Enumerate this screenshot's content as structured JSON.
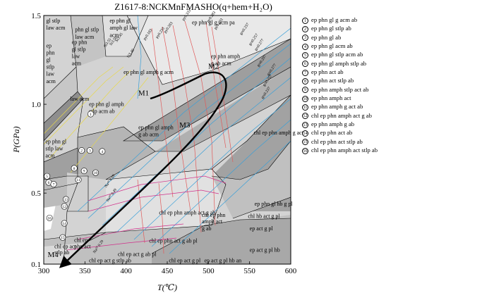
{
  "title": "Z1617-8:NCKMnFMASHO(q+hem+H₂O)",
  "chart_data": {
    "type": "diagram",
    "xlabel": "T(℃)",
    "ylabel": "P(GPa)",
    "xlim": [
      300,
      600
    ],
    "ylim": [
      0.1,
      1.5
    ],
    "x_ticks": [
      "300",
      "350",
      "400",
      "450",
      "500",
      "550",
      "600"
    ],
    "y_ticks": [
      "0.1",
      "0.5",
      "1.0",
      "1.5"
    ],
    "points": [
      {
        "label": "M1",
        "t": 425,
        "p": 1.05
      },
      {
        "label": "M2",
        "t": 510,
        "p": 1.2
      },
      {
        "label": "M3",
        "t": 475,
        "p": 0.87
      },
      {
        "label": "M4",
        "t": 315,
        "p": 0.14
      }
    ],
    "field_labels": [
      {
        "text": "gl stlp",
        "t": 303,
        "p": 1.46
      },
      {
        "text": "law acm",
        "t": 303,
        "p": 1.42
      },
      {
        "text": "phn gl stlp",
        "t": 338,
        "p": 1.41
      },
      {
        "text": "law acm",
        "t": 338,
        "p": 1.37
      },
      {
        "text": "ep phn gl",
        "t": 380,
        "p": 1.46
      },
      {
        "text": "amph gl law",
        "t": 380,
        "p": 1.42
      },
      {
        "text": "acm",
        "t": 380,
        "p": 1.38
      },
      {
        "text": "ep phn gl g acm pa",
        "t": 480,
        "p": 1.45
      },
      {
        "text": "ep phn",
        "t": 334,
        "p": 1.34
      },
      {
        "text": "gl stlp",
        "t": 334,
        "p": 1.3
      },
      {
        "text": "law",
        "t": 334,
        "p": 1.26
      },
      {
        "text": "acm",
        "t": 334,
        "p": 1.22
      },
      {
        "text": "ep",
        "t": 303,
        "p": 1.32
      },
      {
        "text": "phn",
        "t": 303,
        "p": 1.28
      },
      {
        "text": "gl",
        "t": 303,
        "p": 1.24
      },
      {
        "text": "stlp",
        "t": 303,
        "p": 1.2
      },
      {
        "text": "law",
        "t": 303,
        "p": 1.16
      },
      {
        "text": "acm",
        "t": 303,
        "p": 1.12
      },
      {
        "text": "ep phn gl amph g acm",
        "t": 397,
        "p": 1.17
      },
      {
        "text": "ep phn amph",
        "t": 503,
        "p": 1.26
      },
      {
        "text": "g ab acm",
        "t": 503,
        "p": 1.22
      },
      {
        "text": "ep phn gl amph",
        "t": 355,
        "p": 0.99
      },
      {
        "text": "stlp acm ab",
        "t": 355,
        "p": 0.95
      },
      {
        "text": "ep phn gl amph",
        "t": 415,
        "p": 0.86
      },
      {
        "text": "g ab acm",
        "t": 415,
        "p": 0.82
      },
      {
        "text": "chl ep phn amph g act",
        "t": 555,
        "p": 0.83
      },
      {
        "text": "ep phn gl",
        "t": 302,
        "p": 0.78
      },
      {
        "text": "stlp law",
        "t": 302,
        "p": 0.74
      },
      {
        "text": "acm",
        "t": 302,
        "p": 0.7
      },
      {
        "text": "chl ep phn amph act g ab",
        "t": 440,
        "p": 0.38
      },
      {
        "text": "chl ep phn",
        "t": 492,
        "p": 0.365
      },
      {
        "text": "amph act",
        "t": 492,
        "p": 0.33
      },
      {
        "text": "g ab",
        "t": 492,
        "p": 0.29
      },
      {
        "text": "chl ep phn act g ab pl",
        "t": 428,
        "p": 0.22
      },
      {
        "text": "chl ep act g ab pl",
        "t": 390,
        "p": 0.145
      },
      {
        "text": "chl ep",
        "t": 337,
        "p": 0.225
      },
      {
        "text": "phn act",
        "t": 337,
        "p": 0.19
      },
      {
        "text": "chl ep act",
        "t": 313,
        "p": 0.19
      },
      {
        "text": "stlp ab",
        "t": 313,
        "p": 0.155
      },
      {
        "text": "chl ep act g stlp ab",
        "t": 355,
        "p": 0.11
      },
      {
        "text": "ep act g pl",
        "t": 550,
        "p": 0.29
      },
      {
        "text": "ep act g pl hb",
        "t": 550,
        "p": 0.17
      },
      {
        "text": "chl ep act g pl",
        "t": 452,
        "p": 0.11
      },
      {
        "text": "ep act g pl hb an",
        "t": 495,
        "p": 0.11
      },
      {
        "text": "ep phn gl hb g pl",
        "t": 556,
        "p": 0.43
      },
      {
        "text": "chl hb act g pl",
        "t": 548,
        "p": 0.36
      },
      {
        "text": "law acm",
        "t": 332,
        "p": 1.02
      }
    ],
    "isopleth_labels": [
      {
        "text": "Si3.55",
        "t": 375,
        "p": 1.32
      },
      {
        "text": "Si3.50",
        "t": 382,
        "p": 1.33
      },
      {
        "text": "Si3.45",
        "t": 389,
        "p": 1.35
      },
      {
        "text": "Si3.40",
        "t": 403,
        "p": 1.26
      },
      {
        "text": "py0.183",
        "t": 423,
        "p": 1.36
      },
      {
        "text": "py0.233",
        "t": 438,
        "p": 1.37
      },
      {
        "text": "py0.283",
        "t": 448,
        "p": 1.4
      },
      {
        "text": "py0.333",
        "t": 470,
        "p": 1.47
      },
      {
        "text": "py0.283",
        "t": 500,
        "p": 1.46
      },
      {
        "text": "py0.233",
        "t": 509,
        "p": 1.42
      },
      {
        "text": "grs0.237",
        "t": 540,
        "p": 1.39
      },
      {
        "text": "grs0.257",
        "t": 551,
        "p": 1.33
      },
      {
        "text": "grs0.277",
        "t": 558,
        "p": 1.3
      },
      {
        "text": "grs0.297",
        "t": 561,
        "p": 1.21
      },
      {
        "text": "grs0.277",
        "t": 573,
        "p": 1.16
      },
      {
        "text": "grs0.257",
        "t": 568,
        "p": 1.1
      },
      {
        "text": "grs0.237",
        "t": 566,
        "p": 1.03
      },
      {
        "text": "Na⁵⁰ 0.69",
        "t": 376,
        "p": 0.53
      },
      {
        "text": "Na⁵⁰ 0.49",
        "t": 378,
        "p": 0.45
      },
      {
        "text": "Na⁵⁰ 0.29",
        "t": 362,
        "p": 0.16
      }
    ],
    "legend": [
      "ep phn gl g acm ab",
      "ep phn gl stlp ab",
      "ep phn gl ab",
      "ep phn gl acm ab",
      "ep phn gl stlp acm ab",
      "ep phn gl amph stlp ab",
      "ep phn act ab",
      "ep phn act stlp ab",
      "ep phn amph stlp act ab",
      "ep phn amph act",
      "ep phn amph g act ab",
      "chl ep phn amph  act g ab",
      "ep phn amph g ab",
      "chl ep phn act ab",
      "chl ep phn  act stlp ab",
      "chl ep phn amph act stlp ab"
    ],
    "circle_numbers": [
      {
        "n": "1",
        "t": 357,
        "p": 0.945
      },
      {
        "n": "2",
        "t": 346,
        "p": 0.74
      },
      {
        "n": "3",
        "t": 356,
        "p": 0.74
      },
      {
        "n": "4",
        "t": 371,
        "p": 0.735
      },
      {
        "n": "5",
        "t": 304,
        "p": 0.595
      },
      {
        "n": "6",
        "t": 306,
        "p": 0.56
      },
      {
        "n": "7",
        "t": 312,
        "p": 0.55
      },
      {
        "n": "8",
        "t": 337,
        "p": 0.64
      },
      {
        "n": "9",
        "t": 349,
        "p": 0.625
      },
      {
        "n": "10",
        "t": 363,
        "p": 0.615
      },
      {
        "n": "11",
        "t": 342,
        "p": 0.575
      },
      {
        "n": "12",
        "t": 325,
        "p": 0.425
      },
      {
        "n": "13",
        "t": 327,
        "p": 0.465
      },
      {
        "n": "14",
        "t": 325,
        "p": 0.33
      },
      {
        "n": "15",
        "t": 323,
        "p": 0.25
      },
      {
        "n": "16",
        "t": 307,
        "p": 0.36
      }
    ],
    "field_colors": {
      "dark": "#8e8e8e",
      "mid": "#b0b0b0",
      "light": "#d3d3d3",
      "pale": "#e9e9e9"
    },
    "line_colors": {
      "si": "#e8d84a",
      "py": "#e05a5a",
      "grs": "#3aa0d8",
      "na": "#d0308a"
    }
  }
}
